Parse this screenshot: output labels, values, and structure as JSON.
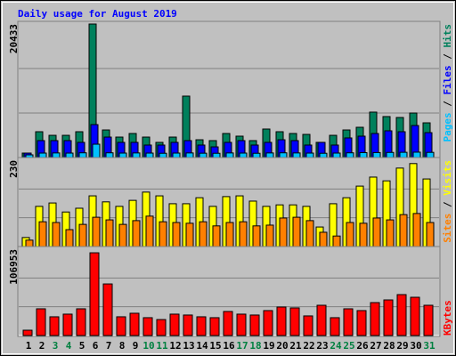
{
  "title": "Daily usage for August 2019",
  "chart_data": [
    {
      "type": "bar",
      "ylim": [
        0,
        20433
      ],
      "yticks": [
        20433
      ],
      "grid": true,
      "label_color": "#008080",
      "series": [
        {
          "name": "Pages",
          "color": "#00c0ff",
          "values": [
            410,
            680,
            700,
            680,
            720,
            2040,
            720,
            680,
            700,
            680,
            650,
            680,
            700,
            660,
            650,
            700,
            680,
            650,
            700,
            720,
            700,
            680,
            650,
            680,
            720,
            750,
            760,
            780,
            800,
            820,
            790
          ]
        },
        {
          "name": "Files",
          "color": "#0000ff",
          "values": [
            680,
            2590,
            2590,
            2590,
            2320,
            5040,
            3130,
            2320,
            2320,
            1910,
            1910,
            2320,
            2590,
            1910,
            1630,
            2320,
            2590,
            1910,
            2320,
            2720,
            2590,
            1910,
            2320,
            1910,
            3000,
            3270,
            3680,
            4090,
            3950,
            4900,
            3810
          ]
        },
        {
          "name": "Hits",
          "color": "#00805c",
          "values": [
            680,
            3950,
            3400,
            3400,
            3950,
            20433,
            4220,
            3130,
            3680,
            3130,
            2320,
            3130,
            9400,
            2720,
            2590,
            3680,
            3270,
            2590,
            4360,
            3950,
            3680,
            3540,
            2320,
            3400,
            4220,
            4630,
            6950,
            6270,
            6130,
            6810,
            5310
          ]
        }
      ]
    },
    {
      "type": "bar",
      "ylim": [
        0,
        230
      ],
      "yticks": [
        230
      ],
      "grid": true,
      "label_color": "#ff8000",
      "series": [
        {
          "name": "Sites",
          "color": "#ff8000",
          "values": [
            17,
            66,
            64,
            45,
            59,
            78,
            71,
            59,
            69,
            81,
            66,
            64,
            62,
            66,
            55,
            64,
            66,
            55,
            57,
            76,
            78,
            69,
            38,
            28,
            64,
            62,
            76,
            71,
            85,
            88,
            64
          ]
        },
        {
          "name": "Visits",
          "color": "#ffff00",
          "values": [
            24,
            107,
            116,
            92,
            102,
            135,
            119,
            107,
            123,
            145,
            135,
            114,
            114,
            130,
            107,
            133,
            135,
            121,
            107,
            111,
            111,
            107,
            52,
            114,
            130,
            161,
            185,
            175,
            209,
            221,
            180
          ]
        }
      ]
    },
    {
      "type": "bar",
      "ylim": [
        0,
        106953
      ],
      "yticks": [
        106953
      ],
      "grid": true,
      "label_color": "#ff0000",
      "categories": [
        "1",
        "2",
        "3",
        "4",
        "5",
        "6",
        "7",
        "8",
        "9",
        "10",
        "11",
        "12",
        "13",
        "14",
        "15",
        "16",
        "17",
        "18",
        "19",
        "20",
        "21",
        "22",
        "23",
        "24",
        "25",
        "26",
        "27",
        "28",
        "29",
        "30",
        "31"
      ],
      "category_colors": [
        "#000000",
        "#000000",
        "#008040",
        "#008040",
        "#000000",
        "#000000",
        "#000000",
        "#000000",
        "#000000",
        "#008040",
        "#008040",
        "#000000",
        "#000000",
        "#000000",
        "#000000",
        "#000000",
        "#008040",
        "#008040",
        "#000000",
        "#000000",
        "#000000",
        "#000000",
        "#000000",
        "#008040",
        "#008040",
        "#000000",
        "#000000",
        "#000000",
        "#000000",
        "#000000",
        "#008040"
      ],
      "series": [
        {
          "name": "KBytes",
          "color": "#ff0000",
          "values": [
            6600,
            33100,
            23200,
            26500,
            33100,
            102500,
            63900,
            23200,
            27600,
            22100,
            19800,
            26500,
            25400,
            23200,
            22100,
            29800,
            26500,
            25400,
            30900,
            35300,
            34200,
            24300,
            37500,
            22100,
            33100,
            30900,
            40800,
            44100,
            50700,
            47400,
            37500
          ]
        }
      ]
    }
  ]
}
